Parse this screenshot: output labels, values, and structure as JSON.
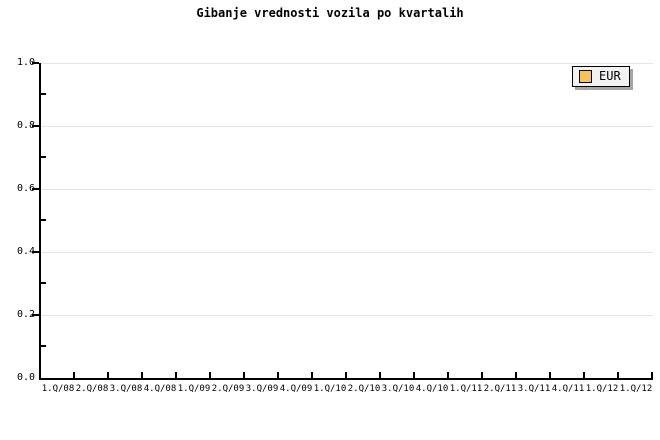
{
  "chart_data": {
    "type": "bar",
    "title": "Gibanje vrednosti vozila po kvartalih",
    "categories": [
      "1.Q/08",
      "2.Q/08",
      "3.Q/08",
      "4.Q/08",
      "1.Q/09",
      "2.Q/09",
      "3.Q/09",
      "4.Q/09",
      "1.Q/10",
      "2.Q/10",
      "3.Q/10",
      "4.Q/10",
      "1.Q/11",
      "2.Q/11",
      "3.Q/11",
      "4.Q/11",
      "1.Q/12",
      "1.Q/12"
    ],
    "series": [
      {
        "name": "EUR",
        "color": "#fac05a",
        "values": []
      }
    ],
    "xlabel": "",
    "ylabel": "",
    "ylim": [
      0.0,
      1.0
    ],
    "yticks": [
      "1.0",
      "0.8",
      "0.6",
      "0.4",
      "0.2",
      "0.0"
    ],
    "y_major_step": 0.2,
    "y_minor_step": 0.1,
    "grid": true,
    "legend_position": "top-right"
  },
  "legend": {
    "items": [
      {
        "label": "EUR",
        "color": "#fac05a"
      }
    ]
  },
  "colors": {
    "background": "#ffffff",
    "axis": "#000000",
    "grid": "#e4e4e4",
    "legend_bg": "#f2f2f2",
    "legend_shadow": "#a6a6a6",
    "series_eur": "#fac05a"
  }
}
